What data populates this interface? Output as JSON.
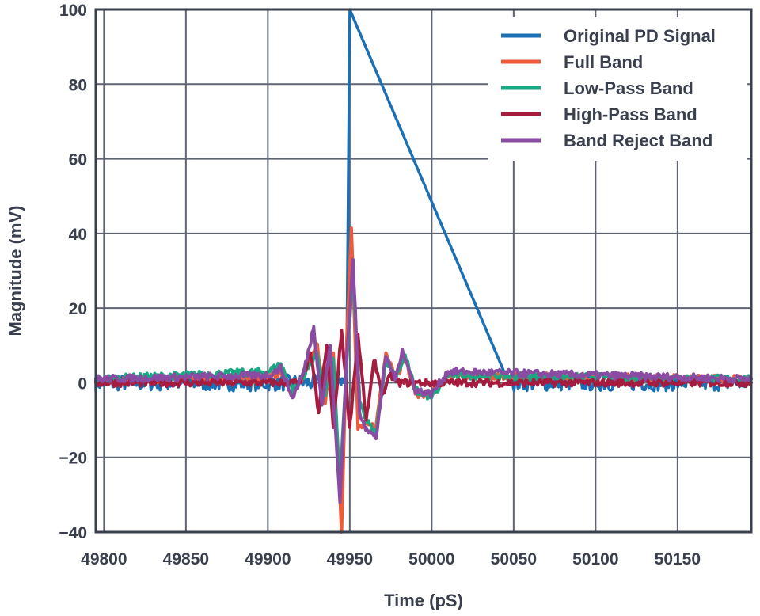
{
  "chart_data": {
    "type": "line",
    "title": "",
    "xlabel": "Time (pS)",
    "ylabel": "Magnitude (mV)",
    "xlim": [
      49795,
      50195
    ],
    "ylim": [
      -40,
      100
    ],
    "xticks": [
      49800,
      49850,
      49900,
      49950,
      50000,
      50050,
      50100,
      50150
    ],
    "yticks": [
      -40,
      -20,
      0,
      20,
      40,
      60,
      80,
      100
    ],
    "xtick_labels": [
      "49800",
      "49850",
      "49900",
      "49950",
      "50000",
      "50050",
      "50100",
      "50150"
    ],
    "ytick_labels": [
      "−40",
      "−20",
      "0",
      "20",
      "40",
      "60",
      "80",
      "100"
    ],
    "grid": true,
    "legend_position": "top-right",
    "series": [
      {
        "name": "Original PD Signal",
        "color": "#1a6fb5",
        "noise_amplitude": 2.2,
        "points": [
          [
            49795,
            0
          ],
          [
            49948,
            0
          ],
          [
            49950,
            100
          ],
          [
            50047,
            0
          ],
          [
            50195,
            0
          ]
        ]
      },
      {
        "name": "Full Band",
        "color": "#ee5a3c",
        "points": [
          [
            49795,
            1
          ],
          [
            49900,
            1
          ],
          [
            49908,
            3
          ],
          [
            49915,
            -3
          ],
          [
            49922,
            2
          ],
          [
            49930,
            10
          ],
          [
            49935,
            -5
          ],
          [
            49940,
            8
          ],
          [
            49945,
            -40
          ],
          [
            49948,
            10
          ],
          [
            49951,
            41
          ],
          [
            49955,
            -12
          ],
          [
            49960,
            -10
          ],
          [
            49966,
            -12
          ],
          [
            49972,
            8
          ],
          [
            49978,
            1
          ],
          [
            49984,
            6
          ],
          [
            49990,
            -3
          ],
          [
            50000,
            -3
          ],
          [
            50010,
            2
          ],
          [
            50195,
            1
          ]
        ]
      },
      {
        "name": "Low-Pass Band",
        "color": "#1aa882",
        "points": [
          [
            49795,
            1
          ],
          [
            49900,
            3
          ],
          [
            49908,
            5
          ],
          [
            49915,
            -2
          ],
          [
            49922,
            2
          ],
          [
            49930,
            8
          ],
          [
            49935,
            -3
          ],
          [
            49940,
            6
          ],
          [
            49944,
            -28
          ],
          [
            49948,
            5
          ],
          [
            49952,
            30
          ],
          [
            49956,
            -5
          ],
          [
            49960,
            -10
          ],
          [
            49966,
            -14
          ],
          [
            49972,
            6
          ],
          [
            49978,
            2
          ],
          [
            49984,
            7
          ],
          [
            49990,
            -2
          ],
          [
            50000,
            -4
          ],
          [
            50010,
            2
          ],
          [
            50195,
            1
          ]
        ]
      },
      {
        "name": "High-Pass Band",
        "color": "#a51c3e",
        "points": [
          [
            49795,
            0
          ],
          [
            49920,
            0
          ],
          [
            49926,
            8
          ],
          [
            49931,
            -8
          ],
          [
            49936,
            10
          ],
          [
            49940,
            -12
          ],
          [
            49945,
            14
          ],
          [
            49950,
            -12
          ],
          [
            49955,
            13
          ],
          [
            49960,
            -10
          ],
          [
            49965,
            6
          ],
          [
            49970,
            -3
          ],
          [
            49975,
            2
          ],
          [
            49980,
            0
          ],
          [
            50195,
            0
          ]
        ]
      },
      {
        "name": "Band Reject Band",
        "color": "#8a4ba2",
        "points": [
          [
            49795,
            1
          ],
          [
            49900,
            2
          ],
          [
            49908,
            4
          ],
          [
            49915,
            -4
          ],
          [
            49922,
            3
          ],
          [
            49928,
            15
          ],
          [
            49933,
            -6
          ],
          [
            49938,
            10
          ],
          [
            49944,
            -32
          ],
          [
            49948,
            6
          ],
          [
            49952,
            33
          ],
          [
            49956,
            -8
          ],
          [
            49960,
            -12
          ],
          [
            49966,
            -15
          ],
          [
            49972,
            7
          ],
          [
            49978,
            1
          ],
          [
            49982,
            9
          ],
          [
            49990,
            -2
          ],
          [
            50000,
            -3
          ],
          [
            50010,
            3
          ],
          [
            50195,
            1
          ]
        ]
      }
    ]
  }
}
